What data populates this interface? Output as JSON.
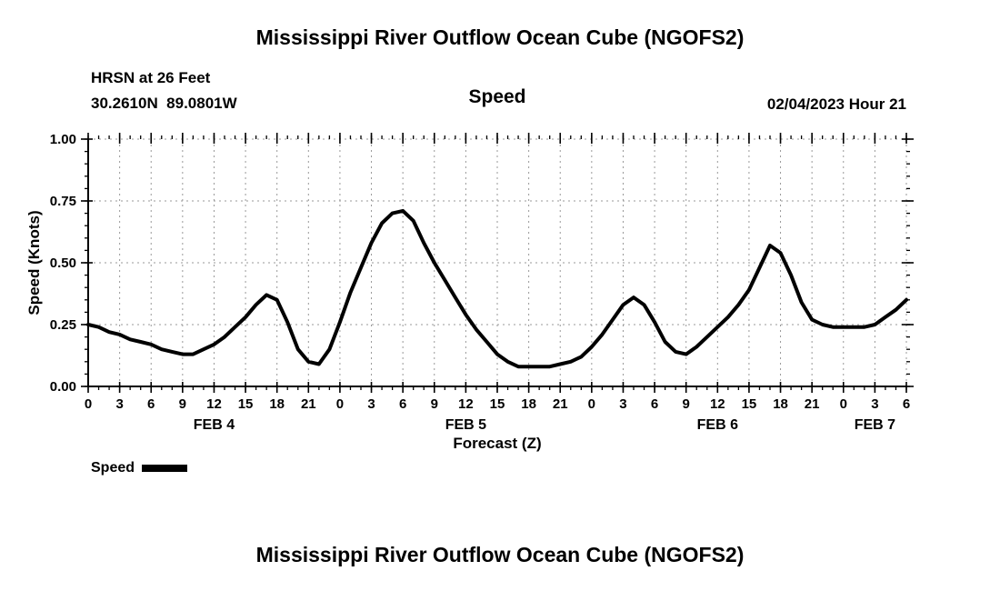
{
  "page": {
    "title_top": "Mississippi River Outflow Ocean Cube (NGOFS2)",
    "title_bottom": "Mississippi River Outflow Ocean Cube (NGOFS2)",
    "station_line1": "HRSN at 26 Feet",
    "station_line2": "30.2610N  89.0801W",
    "panel_label": "Speed",
    "datetime_label": "02/04/2023 Hour 21",
    "legend_label": "Speed"
  },
  "chart_data": {
    "type": "line",
    "title": "Speed",
    "xlabel": "Forecast (Z)",
    "ylabel": "Speed (Knots)",
    "xlim": [
      0,
      78
    ],
    "ylim": [
      0,
      1.0
    ],
    "grid": "dashed",
    "legend_position": "bottom-left",
    "line_color": "#000000",
    "line_width": 4,
    "x_minor_step": 1,
    "y_minor_step": 0.05,
    "y_ticks": [
      {
        "v": 0.0,
        "label": "0.00"
      },
      {
        "v": 0.25,
        "label": "0.25"
      },
      {
        "v": 0.5,
        "label": "0.50"
      },
      {
        "v": 0.75,
        "label": "0.75"
      },
      {
        "v": 1.0,
        "label": "1.00"
      }
    ],
    "x_ticks": [
      {
        "t": 0,
        "label": "0"
      },
      {
        "t": 3,
        "label": "3"
      },
      {
        "t": 6,
        "label": "6"
      },
      {
        "t": 9,
        "label": "9"
      },
      {
        "t": 12,
        "label": "12"
      },
      {
        "t": 15,
        "label": "15"
      },
      {
        "t": 18,
        "label": "18"
      },
      {
        "t": 21,
        "label": "21"
      },
      {
        "t": 24,
        "label": "0"
      },
      {
        "t": 27,
        "label": "3"
      },
      {
        "t": 30,
        "label": "6"
      },
      {
        "t": 33,
        "label": "9"
      },
      {
        "t": 36,
        "label": "12"
      },
      {
        "t": 39,
        "label": "15"
      },
      {
        "t": 42,
        "label": "18"
      },
      {
        "t": 45,
        "label": "21"
      },
      {
        "t": 48,
        "label": "0"
      },
      {
        "t": 51,
        "label": "3"
      },
      {
        "t": 54,
        "label": "6"
      },
      {
        "t": 57,
        "label": "9"
      },
      {
        "t": 60,
        "label": "12"
      },
      {
        "t": 63,
        "label": "15"
      },
      {
        "t": 66,
        "label": "18"
      },
      {
        "t": 69,
        "label": "21"
      },
      {
        "t": 72,
        "label": "0"
      },
      {
        "t": 75,
        "label": "3"
      },
      {
        "t": 78,
        "label": "6"
      }
    ],
    "date_labels": [
      {
        "t": 12,
        "label": "FEB 4"
      },
      {
        "t": 36,
        "label": "FEB 5"
      },
      {
        "t": 60,
        "label": "FEB 6"
      },
      {
        "t": 75,
        "label": "FEB 7"
      }
    ],
    "series": [
      {
        "name": "Speed",
        "x": [
          0,
          1,
          2,
          3,
          4,
          5,
          6,
          7,
          8,
          9,
          10,
          11,
          12,
          13,
          14,
          15,
          16,
          17,
          18,
          19,
          20,
          21,
          22,
          23,
          24,
          25,
          26,
          27,
          28,
          29,
          30,
          31,
          32,
          33,
          34,
          35,
          36,
          37,
          38,
          39,
          40,
          41,
          42,
          43,
          44,
          45,
          46,
          47,
          48,
          49,
          50,
          51,
          52,
          53,
          54,
          55,
          56,
          57,
          58,
          59,
          60,
          61,
          62,
          63,
          64,
          65,
          66,
          67,
          68,
          69,
          70,
          71,
          72,
          73,
          74,
          75,
          76,
          77,
          78
        ],
        "y": [
          0.25,
          0.24,
          0.22,
          0.21,
          0.19,
          0.18,
          0.17,
          0.15,
          0.14,
          0.13,
          0.13,
          0.15,
          0.17,
          0.2,
          0.24,
          0.28,
          0.33,
          0.37,
          0.35,
          0.26,
          0.15,
          0.1,
          0.09,
          0.15,
          0.26,
          0.38,
          0.48,
          0.58,
          0.66,
          0.7,
          0.71,
          0.67,
          0.58,
          0.5,
          0.43,
          0.36,
          0.29,
          0.23,
          0.18,
          0.13,
          0.1,
          0.08,
          0.08,
          0.08,
          0.08,
          0.09,
          0.1,
          0.12,
          0.16,
          0.21,
          0.27,
          0.33,
          0.36,
          0.33,
          0.26,
          0.18,
          0.14,
          0.13,
          0.16,
          0.2,
          0.24,
          0.28,
          0.33,
          0.39,
          0.48,
          0.57,
          0.54,
          0.45,
          0.34,
          0.27,
          0.25,
          0.24,
          0.24,
          0.24,
          0.24,
          0.25,
          0.28,
          0.31,
          0.35
        ]
      }
    ]
  }
}
